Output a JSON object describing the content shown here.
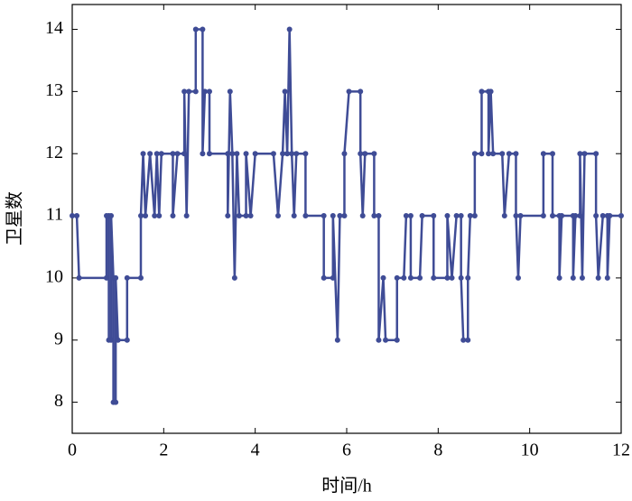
{
  "chart_data": {
    "type": "line",
    "xlabel": "时间/h",
    "ylabel": "卫星数",
    "x": [
      0.0,
      0.1,
      0.15,
      0.75,
      0.75,
      0.8,
      0.8,
      0.85,
      0.85,
      0.9,
      0.9,
      0.95,
      0.95,
      1.0,
      1.2,
      1.2,
      1.5,
      1.5,
      1.55,
      1.6,
      1.7,
      1.8,
      1.85,
      1.9,
      1.95,
      2.2,
      2.2,
      2.3,
      2.45,
      2.45,
      2.5,
      2.55,
      2.7,
      2.7,
      2.85,
      2.85,
      2.9,
      3.0,
      3.0,
      3.4,
      3.4,
      3.45,
      3.5,
      3.55,
      3.6,
      3.65,
      3.8,
      3.8,
      3.9,
      4.0,
      4.4,
      4.5,
      4.6,
      4.65,
      4.7,
      4.75,
      4.8,
      4.85,
      4.9,
      5.1,
      5.1,
      5.5,
      5.5,
      5.7,
      5.7,
      5.8,
      5.85,
      5.95,
      5.95,
      6.05,
      6.3,
      6.3,
      6.35,
      6.4,
      6.6,
      6.6,
      6.7,
      6.7,
      6.8,
      6.85,
      7.1,
      7.1,
      7.25,
      7.3,
      7.4,
      7.4,
      7.6,
      7.65,
      7.9,
      7.9,
      8.2,
      8.2,
      8.3,
      8.4,
      8.5,
      8.5,
      8.55,
      8.65,
      8.65,
      8.7,
      8.8,
      8.8,
      8.95,
      8.95,
      9.1,
      9.1,
      9.15,
      9.2,
      9.4,
      9.45,
      9.55,
      9.7,
      9.7,
      9.75,
      9.8,
      10.3,
      10.3,
      10.5,
      10.5,
      10.65,
      10.65,
      10.7,
      10.95,
      10.95,
      11.0,
      11.1,
      11.1,
      11.15,
      11.2,
      11.45,
      11.45,
      11.5,
      11.6,
      11.7,
      11.7,
      11.75,
      12.0
    ],
    "series": [
      {
        "name": "卫星数",
        "color": "#3f4c96",
        "values": [
          11,
          11,
          10,
          10,
          11,
          11,
          9,
          9,
          11,
          10,
          8,
          8,
          10,
          9,
          9,
          10,
          10,
          11,
          12,
          11,
          12,
          11,
          12,
          11,
          12,
          12,
          11,
          12,
          12,
          13,
          11,
          13,
          13,
          14,
          14,
          12,
          13,
          13,
          12,
          12,
          11,
          13,
          12,
          10,
          12,
          11,
          11,
          12,
          11,
          12,
          12,
          11,
          12,
          13,
          12,
          14,
          12,
          11,
          12,
          12,
          11,
          11,
          10,
          10,
          11,
          9,
          11,
          11,
          12,
          13,
          13,
          12,
          11,
          12,
          12,
          11,
          11,
          9,
          10,
          9,
          9,
          10,
          10,
          11,
          11,
          10,
          10,
          11,
          11,
          10,
          10,
          11,
          10,
          11,
          11,
          10,
          9,
          9,
          10,
          11,
          11,
          12,
          12,
          13,
          13,
          12,
          13,
          12,
          12,
          11,
          12,
          12,
          11,
          10,
          11,
          11,
          12,
          12,
          11,
          11,
          10,
          11,
          11,
          10,
          11,
          11,
          12,
          10,
          12,
          12,
          11,
          10,
          11,
          11,
          10,
          11,
          11
        ]
      }
    ],
    "xlim": [
      0,
      12
    ],
    "xticks": [
      0,
      2,
      4,
      6,
      8,
      10,
      12
    ],
    "ylim": [
      7.5,
      14.4
    ],
    "yticks": [
      8,
      9,
      10,
      11,
      12,
      13,
      14
    ]
  }
}
